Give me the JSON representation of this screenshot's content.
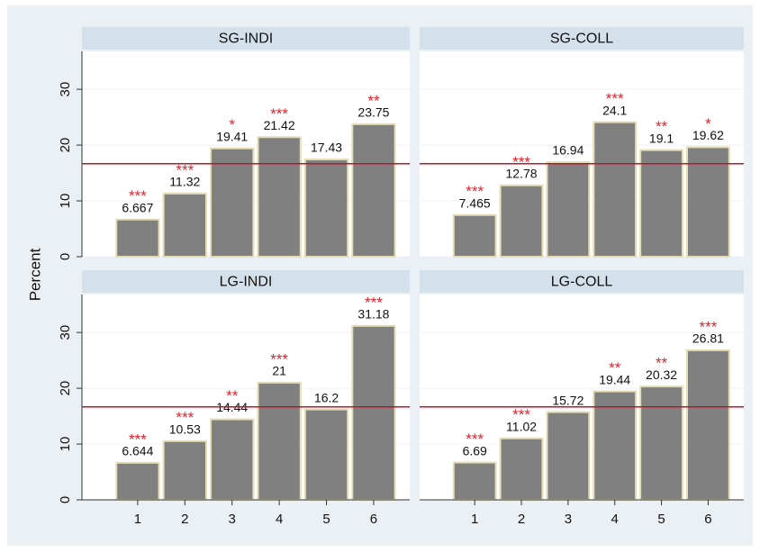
{
  "ylabel": "Percent",
  "chart_data": [
    {
      "type": "bar",
      "title": "SG-INDI",
      "values": [
        6.667,
        11.32,
        19.41,
        21.42,
        17.43,
        23.75
      ],
      "stars": [
        "***",
        "***",
        "*",
        "***",
        null,
        "**"
      ],
      "color": "#808080",
      "star_color": "#e8202a",
      "ref_line": 16.67,
      "ref_color": "#c8102e",
      "ylim": [
        0,
        36.8
      ],
      "yticks": [
        0,
        10,
        20,
        30
      ],
      "grid": true
    },
    {
      "type": "bar",
      "title": "SG-COLL",
      "values": [
        7.465,
        12.78,
        16.94,
        24.1,
        19.1,
        19.62
      ],
      "stars": [
        "***",
        "***",
        null,
        "***",
        "**",
        "*"
      ],
      "color": "#808080",
      "star_color": "#e8202a",
      "ref_line": 16.67,
      "ref_color": "#c8102e",
      "ylim": [
        0,
        36.8
      ],
      "yticks": [
        0,
        10,
        20,
        30
      ],
      "grid": true
    },
    {
      "type": "bar",
      "title": "LG-INDI",
      "categories": [
        "1",
        "2",
        "3",
        "4",
        "5",
        "6"
      ],
      "values": [
        6.644,
        10.53,
        14.44,
        21,
        16.2,
        31.18
      ],
      "stars": [
        "***",
        "***",
        "**",
        "***",
        null,
        "***"
      ],
      "color": "#808080",
      "star_color": "#e8202a",
      "ref_line": 16.67,
      "ref_color": "#c8102e",
      "ylim": [
        0,
        36.8
      ],
      "yticks": [
        0,
        10,
        20,
        30
      ],
      "grid": true
    },
    {
      "type": "bar",
      "title": "LG-COLL",
      "categories": [
        "1",
        "2",
        "3",
        "4",
        "5",
        "6"
      ],
      "values": [
        6.69,
        11.02,
        15.72,
        19.44,
        20.32,
        26.81
      ],
      "stars": [
        "***",
        "***",
        null,
        "**",
        "**",
        "***"
      ],
      "color": "#808080",
      "star_color": "#e8202a",
      "ref_line": 16.67,
      "ref_color": "#c8102e",
      "ylim": [
        0,
        36.8
      ],
      "yticks": [
        0,
        10,
        20,
        30
      ],
      "grid": true
    }
  ]
}
